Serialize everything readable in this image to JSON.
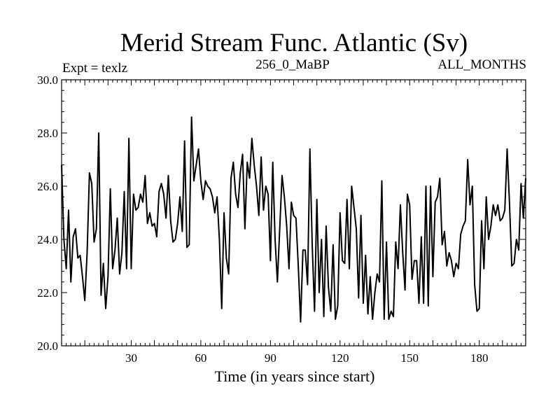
{
  "chart_data": {
    "type": "line",
    "title": "Merid Stream Func. Atlantic (Sv)",
    "subtitle_left": "Expt = texlz",
    "subtitle_center": "256_0_MaBP",
    "subtitle_right": "ALL_MONTHS",
    "xlabel": "Time (in years since start)",
    "ylabel": "",
    "xlim": [
      0,
      200
    ],
    "ylim": [
      20.0,
      30.0
    ],
    "xticks": [
      30,
      60,
      90,
      120,
      150,
      180
    ],
    "xtick_labels": [
      "30",
      "60",
      "90",
      "120",
      "150",
      "180"
    ],
    "yticks": [
      20,
      22,
      24,
      26,
      28,
      30
    ],
    "ytick_labels": [
      "20.0",
      "22.0",
      "24.0",
      "26.0",
      "28.0",
      "30.0"
    ],
    "series": [
      {
        "name": "Merid Stream Func. Atlantic",
        "color": "#000000",
        "values": [
          26.8,
          24.0,
          22.9,
          25.1,
          22.4,
          24.1,
          24.4,
          23.3,
          23.4,
          22.6,
          21.7,
          23.5,
          26.5,
          26.1,
          23.9,
          24.4,
          28.0,
          21.9,
          23.1,
          21.4,
          22.6,
          25.9,
          22.9,
          23.6,
          24.8,
          22.7,
          23.5,
          25.8,
          22.9,
          27.8,
          22.9,
          25.7,
          25.1,
          25.2,
          25.7,
          25.4,
          26.4,
          24.6,
          25.0,
          24.5,
          24.6,
          24.1,
          25.8,
          26.1,
          25.7,
          24.8,
          26.4,
          24.7,
          23.9,
          24.0,
          24.6,
          25.6,
          24.3,
          27.7,
          23.7,
          23.8,
          28.6,
          26.2,
          26.8,
          27.4,
          26.2,
          25.5,
          26.2,
          26.0,
          25.9,
          25.6,
          25.0,
          25.6,
          24.0,
          21.4,
          25.0,
          23.3,
          22.7,
          26.3,
          26.9,
          25.7,
          25.2,
          26.5,
          27.2,
          24.4,
          26.9,
          26.3,
          27.8,
          26.8,
          26.0,
          24.9,
          27.1,
          25.1,
          26.0,
          25.7,
          23.2,
          26.9,
          24.0,
          22.4,
          24.4,
          26.4,
          25.6,
          24.5,
          22.9,
          25.4,
          24.9,
          24.8,
          23.0,
          20.9,
          23.6,
          23.6,
          22.3,
          27.4,
          23.8,
          21.3,
          25.5,
          22.0,
          24.0,
          21.1,
          24.5,
          22.2,
          21.3,
          23.8,
          21.0,
          21.5,
          25.0,
          23.2,
          23.1,
          25.5,
          22.9,
          26.0,
          25.2,
          24.4,
          21.8,
          24.9,
          21.6,
          23.4,
          21.2,
          22.6,
          21.0,
          22.0,
          22.7,
          22.4,
          26.2,
          21.0,
          23.9,
          21.0,
          21.3,
          21.1,
          23.9,
          22.9,
          25.3,
          23.5,
          22.1,
          25.7,
          25.3,
          22.5,
          23.2,
          23.2,
          21.6,
          24.1,
          21.6,
          26.0,
          21.5,
          26.0,
          22.6,
          25.4,
          25.6,
          26.3,
          23.8,
          24.3,
          23.0,
          23.5,
          23.2,
          22.6,
          23.1,
          22.9,
          24.2,
          24.5,
          24.7,
          27.0,
          25.3,
          26.0,
          22.3,
          21.3,
          21.4,
          24.7,
          22.9,
          25.6,
          24.0,
          24.5,
          25.3,
          24.9,
          25.3,
          24.7,
          24.8,
          25.1,
          27.4,
          25.4,
          23.0,
          23.1,
          24.0,
          23.6,
          26.1,
          24.8,
          26.3
        ]
      }
    ]
  }
}
